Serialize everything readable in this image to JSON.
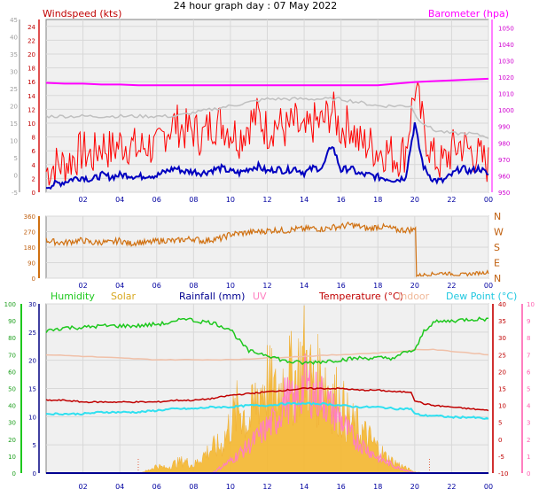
{
  "title": "24 hour graph day : 07 May 2022",
  "x_ticks": [
    "02",
    "04",
    "06",
    "08",
    "10",
    "12",
    "14",
    "16",
    "18",
    "20",
    "22",
    "00"
  ],
  "colors": {
    "windspeed": "#ff0000",
    "windavg": "#0000c0",
    "gust_ref": "#c0c0c0",
    "barometer": "#ff00ff",
    "direction": "#d07010",
    "humidity": "#1ec81e",
    "solar": "#f5b830",
    "rainfall": "#000090",
    "uv": "#ff7fc0",
    "temperature": "#c00000",
    "indoor": "#f0c0a8",
    "dewpoint": "#30e0f0",
    "plot_bg": "#f0f0f0",
    "tick_color": "#0000a0"
  },
  "chart_data": [
    {
      "type": "line",
      "title": "",
      "left_label": "Windspeed (kts)",
      "right_label": "Barometer (hpa)",
      "xlim": [
        0,
        24
      ],
      "y_left": {
        "ticks": [
          "24",
          "22",
          "20",
          "18",
          "16",
          "14",
          "12",
          "10",
          "8",
          "6",
          "4",
          "2",
          "0"
        ],
        "ylim": [
          0,
          25
        ]
      },
      "y_right": {
        "ticks": [
          "1050",
          "1040",
          "1030",
          "1020",
          "1010",
          "1000",
          "990",
          "980",
          "970",
          "960",
          "950"
        ],
        "ylim": [
          950,
          1055
        ]
      },
      "y_outer": {
        "ticks": [
          "45",
          "40",
          "35",
          "30",
          "25",
          "20",
          "15",
          "10",
          "5",
          "0",
          "-5"
        ],
        "ylim": [
          -5,
          45
        ]
      },
      "grid": true,
      "series": [
        {
          "key": "windspeed",
          "axis": "left",
          "x": [
            0,
            0.5,
            1,
            1.5,
            2,
            2.5,
            3,
            3.5,
            4,
            4.5,
            5,
            5.5,
            6,
            6.5,
            7,
            7.5,
            8,
            8.5,
            9,
            9.5,
            10,
            10.5,
            11,
            11.5,
            12,
            12.5,
            13,
            13.5,
            14,
            14.5,
            15,
            15.5,
            16,
            16.5,
            17,
            17.5,
            18,
            18.5,
            19,
            19.5,
            20,
            20.2,
            20.5,
            21,
            21.5,
            22,
            22.5,
            23,
            23.5,
            24
          ],
          "y": [
            3,
            4,
            4,
            5,
            6,
            5,
            7,
            6,
            7,
            7,
            6,
            7,
            6,
            9,
            10,
            9,
            9,
            8,
            10,
            10,
            9,
            8,
            10,
            11,
            9,
            10,
            9,
            10,
            8,
            10,
            10,
            12,
            9,
            10,
            7,
            7,
            6,
            6,
            5,
            6,
            15,
            13,
            9,
            5,
            4,
            6,
            7,
            6,
            5,
            4
          ]
        },
        {
          "key": "windavg",
          "axis": "left",
          "x": [
            0,
            0.5,
            1,
            1.5,
            2,
            2.5,
            3,
            3.5,
            4,
            4.5,
            5,
            5.5,
            6,
            6.5,
            7,
            7.5,
            8,
            8.5,
            9,
            9.5,
            10,
            10.5,
            11,
            11.5,
            12,
            12.5,
            13,
            13.5,
            14,
            14.5,
            15,
            15.5,
            16,
            16.5,
            17,
            17.5,
            18,
            18.5,
            19,
            19.5,
            20,
            20.2,
            20.5,
            21,
            21.5,
            22,
            22.5,
            23,
            23.5,
            24
          ],
          "y": [
            0.8,
            1.2,
            1.5,
            2,
            2.2,
            1.8,
            2.5,
            2.2,
            2.5,
            2.5,
            2.2,
            2.5,
            2.4,
            3,
            3.5,
            3,
            3,
            2.8,
            3.2,
            3.5,
            3,
            2.8,
            3.4,
            3.8,
            3,
            3.4,
            3.1,
            3.5,
            2.8,
            3.5,
            3.5,
            7,
            3.2,
            3.5,
            2.6,
            2.5,
            2.2,
            2,
            1.8,
            2.2,
            10,
            7,
            3.5,
            1.8,
            1.6,
            2.5,
            3.5,
            3,
            3.5,
            2.5
          ]
        },
        {
          "key": "gust_ref",
          "axis": "left",
          "x": [
            0,
            2,
            4,
            6,
            7,
            8,
            9,
            10,
            11,
            12,
            13,
            14,
            15,
            16,
            17,
            18,
            19,
            19.9,
            20,
            20.5,
            21,
            22,
            23,
            24
          ],
          "y": [
            11,
            11,
            11,
            11,
            11,
            11.5,
            12,
            12.5,
            13,
            13.5,
            13.5,
            13.5,
            13.5,
            13.5,
            13,
            12.5,
            12.5,
            12.5,
            11,
            10,
            9,
            8.5,
            8.5,
            8
          ]
        },
        {
          "key": "barometer",
          "axis": "right",
          "x": [
            0,
            1,
            2,
            3,
            4,
            5,
            6,
            7,
            8,
            9,
            10,
            11,
            12,
            13,
            14,
            15,
            16,
            17,
            18,
            19,
            20,
            21,
            22,
            23,
            24
          ],
          "y": [
            1016.5,
            1016,
            1016,
            1015.5,
            1015.5,
            1015,
            1015,
            1015,
            1015,
            1015,
            1015,
            1015,
            1015,
            1015,
            1015,
            1015,
            1015,
            1015,
            1015,
            1016,
            1017,
            1017.5,
            1018,
            1018.5,
            1019
          ]
        }
      ]
    },
    {
      "type": "line",
      "title": "",
      "xlim": [
        0,
        24
      ],
      "y_left": {
        "ticks": [
          "360",
          "270",
          "180",
          "90",
          "0"
        ],
        "ylim": [
          0,
          360
        ]
      },
      "compass_labels": [
        "N",
        "W",
        "S",
        "E",
        "N"
      ],
      "grid": true,
      "series": [
        {
          "key": "direction",
          "axis": "left",
          "x": [
            0,
            0.5,
            1,
            1.5,
            2,
            2.5,
            3,
            3.5,
            4,
            4.5,
            5,
            5.5,
            6,
            6.5,
            7,
            7.5,
            8,
            8.5,
            9,
            9.5,
            10,
            10.5,
            11,
            11.5,
            12,
            12.5,
            13,
            13.5,
            14,
            14.5,
            15,
            15.5,
            16,
            16.5,
            17,
            17.5,
            18,
            18.5,
            19,
            19.5,
            20,
            20.01,
            20.5,
            21,
            21.5,
            22,
            22.5,
            23,
            23.5,
            24
          ],
          "y": [
            220,
            210,
            205,
            215,
            220,
            205,
            210,
            205,
            220,
            200,
            210,
            205,
            215,
            220,
            215,
            225,
            230,
            215,
            225,
            230,
            255,
            260,
            265,
            270,
            275,
            280,
            275,
            285,
            285,
            290,
            285,
            295,
            300,
            310,
            300,
            285,
            300,
            295,
            280,
            280,
            280,
            15,
            20,
            25,
            30,
            25,
            20,
            25,
            30,
            35
          ]
        }
      ]
    },
    {
      "type": "line",
      "title": "",
      "xlim": [
        0,
        24
      ],
      "legend": [
        "Humidity",
        "Solar",
        "Rainfall (mm)",
        "UV",
        "Temperature (°C)",
        "Indoor",
        "Dew Point (°C)"
      ],
      "y_left": {
        "ticks": [
          "30",
          "25",
          "20",
          "15",
          "10",
          "5",
          "0"
        ],
        "ylim": [
          0,
          30
        ]
      },
      "y_hum": {
        "ticks": [
          "100",
          "90",
          "80",
          "70",
          "60",
          "50",
          "40",
          "30",
          "20",
          "10",
          "0"
        ],
        "ylim": [
          0,
          100
        ]
      },
      "y_right": {
        "ticks": [
          "40",
          "35",
          "30",
          "25",
          "20",
          "15",
          "10",
          "5",
          "0",
          "-5",
          "-10"
        ],
        "ylim": [
          -10,
          40
        ]
      },
      "y_uv": {
        "ticks": [
          "10",
          "9",
          "8",
          "7",
          "6",
          "5",
          "4",
          "3",
          "2",
          "1",
          "0"
        ],
        "ylim": [
          0,
          10
        ]
      },
      "grid": true,
      "series": [
        {
          "key": "humidity",
          "axis": "hum",
          "x": [
            0,
            1,
            2,
            3,
            4,
            5,
            6,
            7,
            7.5,
            8,
            9,
            10,
            10.5,
            11,
            12,
            13,
            14,
            15,
            16,
            17,
            18,
            19,
            19.5,
            20,
            20.5,
            21,
            22,
            23,
            24
          ],
          "y": [
            84,
            86,
            86,
            87,
            87,
            87,
            88,
            89,
            92,
            90,
            89,
            85,
            78,
            72,
            70,
            66,
            65,
            66,
            67,
            68,
            68,
            68,
            72,
            72,
            84,
            89,
            90,
            91,
            91
          ]
        },
        {
          "key": "solar",
          "axis": "uv",
          "x": [
            0,
            5,
            5.5,
            6,
            6.5,
            7,
            7.5,
            8,
            8.5,
            9,
            9.5,
            10,
            10.5,
            11,
            11.5,
            12,
            12.5,
            13,
            13.5,
            14,
            14.5,
            15,
            15.5,
            16,
            16.5,
            17,
            17.5,
            18,
            18.5,
            19,
            19.5,
            20,
            20.5,
            24
          ],
          "y": [
            0,
            0,
            0.2,
            0.6,
            0.4,
            0.8,
            1,
            0.6,
            1.4,
            2,
            2.2,
            4,
            5.5,
            4,
            6.5,
            7.5,
            6,
            8,
            7.5,
            9.5,
            7,
            8,
            6.5,
            5.5,
            4,
            3.5,
            2.8,
            2,
            1.2,
            0.8,
            0.4,
            0.1,
            0,
            0
          ]
        },
        {
          "key": "uv",
          "axis": "uv",
          "x": [
            0,
            9,
            10,
            11,
            11.5,
            12,
            12.5,
            13,
            13.5,
            14,
            14.5,
            15,
            15.5,
            16,
            16.5,
            17,
            17.5,
            18,
            18.5,
            19,
            19.5,
            20,
            24
          ],
          "y": [
            0,
            0,
            0.8,
            1.8,
            2.4,
            3,
            3.5,
            5,
            4.4,
            6,
            5.2,
            5,
            4.2,
            3.5,
            2.5,
            2,
            1.5,
            1,
            0.7,
            0.4,
            0.2,
            0,
            0
          ]
        },
        {
          "key": "temperature",
          "axis": "right",
          "x": [
            0,
            1,
            2,
            3,
            4,
            5,
            6,
            7,
            8,
            9,
            10,
            11,
            12,
            13,
            14,
            15,
            16,
            17,
            18,
            19,
            19.8,
            20,
            20.5,
            21,
            22,
            23,
            24
          ],
          "y": [
            11.5,
            11.5,
            11,
            11,
            11,
            11,
            11,
            11.5,
            11.5,
            12,
            13,
            13.5,
            14,
            14.5,
            15,
            15,
            15,
            14.5,
            14.5,
            14,
            14,
            11.5,
            10.5,
            10,
            9.5,
            9,
            8.5
          ]
        },
        {
          "key": "indoor",
          "axis": "right",
          "x": [
            0,
            2,
            4,
            6,
            8,
            10,
            12,
            14,
            16,
            18,
            19.5,
            20,
            21,
            22,
            23,
            24
          ],
          "y": [
            25,
            24.5,
            24,
            23.5,
            23.5,
            23.5,
            24,
            24.5,
            25,
            25.5,
            26,
            26.5,
            26.5,
            26,
            25.5,
            25
          ]
        },
        {
          "key": "dewpoint",
          "axis": "right",
          "x": [
            0,
            1,
            2,
            3,
            4,
            5,
            6,
            7,
            8,
            9,
            10,
            11,
            12,
            13,
            14,
            15,
            16,
            17,
            18,
            19,
            19.8,
            20,
            20.5,
            21,
            22,
            23,
            24
          ],
          "y": [
            7.5,
            7.5,
            7.5,
            8,
            8,
            8,
            8.5,
            9,
            9,
            9.5,
            9.5,
            10,
            10,
            10.5,
            10.5,
            10.5,
            10,
            9.5,
            9.5,
            9,
            9,
            7.5,
            7,
            7,
            6.5,
            6.5,
            6
          ]
        },
        {
          "key": "rainfall",
          "axis": "left",
          "x": [
            0,
            24
          ],
          "y": [
            0,
            0
          ]
        }
      ],
      "markers": [
        {
          "x": 5,
          "label": ""
        },
        {
          "x": 20.8,
          "label": ""
        }
      ]
    }
  ]
}
